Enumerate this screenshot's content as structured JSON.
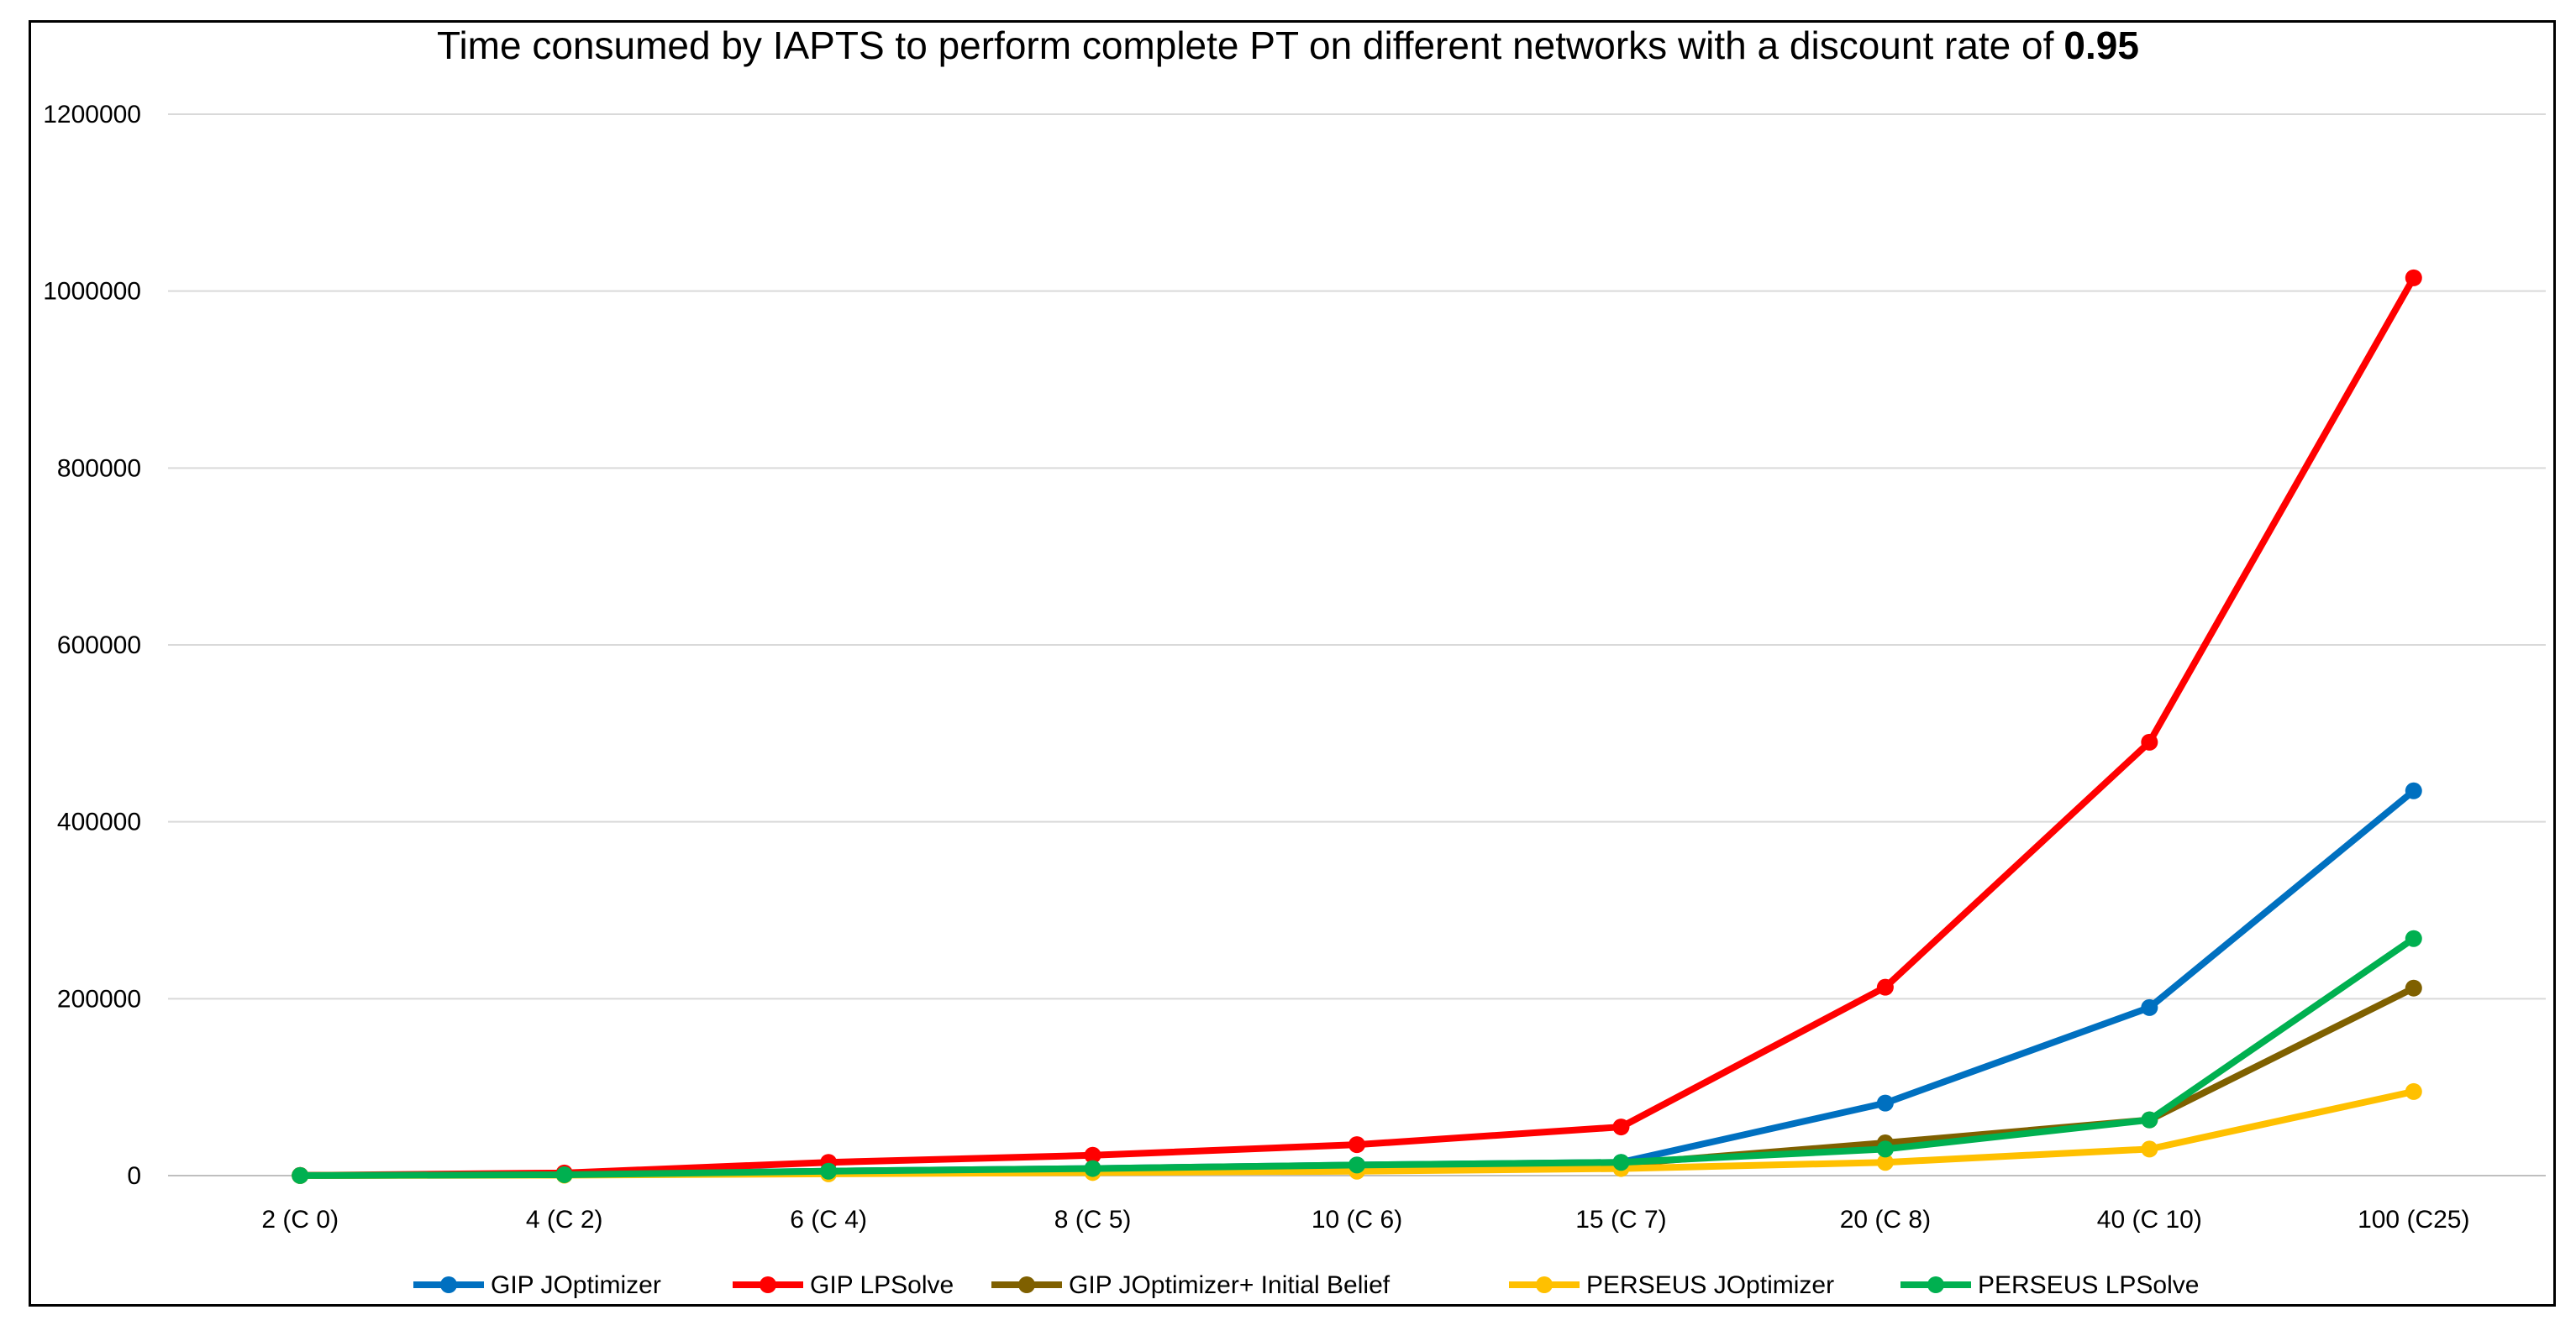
{
  "chart_data": {
    "type": "line",
    "title": "Time consumed by IAPTS to perform complete PT on different networks with a discount rate of",
    "title_emphasis": "0.95",
    "xlabel": "",
    "ylabel": "",
    "categories": [
      "2 (C 0)",
      "4 (C 2)",
      "6 (C 4)",
      "8 (C 5)",
      "10 (C 6)",
      "15 (C 7)",
      "20 (C 8)",
      "40 (C 10)",
      "100 (C25)"
    ],
    "ylim": [
      0,
      1200000
    ],
    "yticks": [
      0,
      200000,
      400000,
      600000,
      800000,
      1000000,
      1200000
    ],
    "ytick_labels": [
      "0",
      "200000",
      "400000",
      "600000",
      "800000",
      "1000000",
      "1200000"
    ],
    "grid": true,
    "legend_position": "bottom",
    "series": [
      {
        "name": "GIP JOptimizer",
        "color": "#0070C0",
        "values": [
          100,
          1500,
          5000,
          8000,
          12000,
          15000,
          82000,
          190000,
          435000
        ]
      },
      {
        "name": "GIP LPSolve",
        "color": "#FF0000",
        "values": [
          200,
          3000,
          15000,
          23000,
          35000,
          55000,
          213000,
          490000,
          1015000
        ]
      },
      {
        "name": "GIP JOptimizer+ Initial Belief",
        "color": "#7F6000",
        "values": [
          100,
          1000,
          4000,
          7000,
          10000,
          13000,
          37000,
          63000,
          212000
        ]
      },
      {
        "name": "PERSEUS JOptimizer",
        "color": "#FFC000",
        "values": [
          50,
          500,
          2000,
          3500,
          5000,
          8000,
          15000,
          30000,
          95000
        ]
      },
      {
        "name": "PERSEUS LPSolve",
        "color": "#00B050",
        "values": [
          100,
          1000,
          5000,
          8000,
          12000,
          15000,
          30000,
          63000,
          268000
        ]
      }
    ]
  }
}
